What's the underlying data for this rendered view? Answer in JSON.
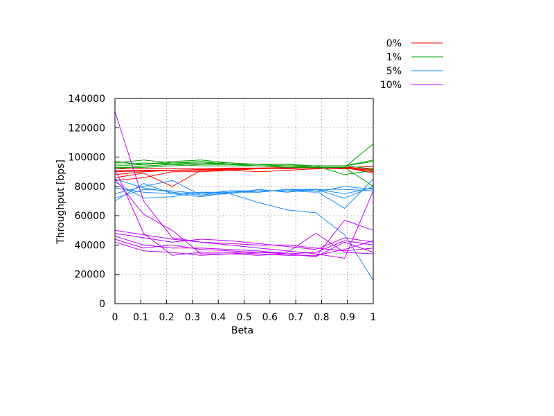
{
  "chart_data": {
    "type": "line",
    "title": "",
    "xlabel": "Beta",
    "ylabel": "Throughput [bps]",
    "xlim": [
      0,
      1
    ],
    "ylim": [
      0,
      140000
    ],
    "xticks": [
      "0",
      "0.1",
      "0.2",
      "0.3",
      "0.4",
      "0.5",
      "0.6",
      "0.7",
      "0.8",
      "0.9",
      "1"
    ],
    "yticks": [
      "0",
      "20000",
      "40000",
      "60000",
      "80000",
      "100000",
      "120000",
      "140000"
    ],
    "grid": true,
    "legend_position": "top-right, outside plot",
    "x": [
      0,
      0.111,
      0.222,
      0.333,
      0.444,
      0.556,
      0.667,
      0.778,
      0.889,
      1
    ],
    "series": [
      {
        "name": "0%",
        "color": "#ff0000",
        "lines": [
          [
            91000,
            91000,
            91000,
            91500,
            92000,
            92000,
            92500,
            92500,
            92500,
            91000
          ],
          [
            90000,
            90500,
            91000,
            91500,
            92000,
            92500,
            92500,
            93000,
            93000,
            91500
          ],
          [
            92000,
            92000,
            92000,
            92000,
            92500,
            92500,
            93000,
            93000,
            92500,
            90000
          ],
          [
            86000,
            89000,
            80000,
            91000,
            91000,
            90000,
            91000,
            92000,
            93000,
            89000
          ],
          [
            84000,
            86000,
            90000,
            90000,
            91000,
            92000,
            93000,
            92500,
            92000,
            92000
          ],
          [
            88000,
            90000,
            91000,
            91000,
            91500,
            92500,
            92000,
            93000,
            93000,
            93500
          ]
        ]
      },
      {
        "name": "1%",
        "color": "#00a000",
        "lines": [
          [
            96000,
            98000,
            96000,
            97000,
            95000,
            94000,
            94000,
            93000,
            93000,
            109000
          ],
          [
            94000,
            95000,
            97000,
            98000,
            96000,
            95000,
            95000,
            94000,
            94000,
            98000
          ],
          [
            93000,
            93000,
            94000,
            95000,
            95000,
            95000,
            94000,
            94000,
            88000,
            91000
          ],
          [
            95000,
            96000,
            95000,
            96000,
            95000,
            94000,
            94000,
            94000,
            94000,
            92000
          ],
          [
            92000,
            94000,
            95000,
            94000,
            94000,
            94000,
            93000,
            93000,
            93000,
            80000
          ],
          [
            97000,
            95000,
            96000,
            96000,
            96000,
            95000,
            95000,
            94000,
            94000,
            97000
          ]
        ]
      },
      {
        "name": "5%",
        "color": "#1a8cff",
        "lines": [
          [
            83000,
            72000,
            73000,
            76000,
            76000,
            77000,
            77000,
            76000,
            80000,
            78000
          ],
          [
            75000,
            80000,
            84000,
            74000,
            75000,
            69000,
            64000,
            62000,
            47000,
            16000
          ],
          [
            79000,
            76000,
            75000,
            73000,
            76000,
            76000,
            78000,
            77000,
            65000,
            85000
          ],
          [
            72000,
            78000,
            77000,
            75000,
            77000,
            76000,
            78000,
            78000,
            75000,
            79000
          ],
          [
            85000,
            79000,
            76000,
            74000,
            77000,
            77000,
            77000,
            78000,
            72000,
            80000
          ],
          [
            70000,
            82000,
            75000,
            76000,
            75000,
            78000,
            76000,
            78000,
            78000,
            77000
          ]
        ]
      },
      {
        "name": "10%",
        "color": "#c000ff",
        "lines": [
          [
            131000,
            70000,
            45000,
            42000,
            40000,
            38000,
            36000,
            34000,
            31000,
            77000
          ],
          [
            92000,
            48000,
            33000,
            35000,
            35000,
            34000,
            33000,
            33000,
            37000,
            43000
          ],
          [
            85000,
            61000,
            50000,
            34000,
            34000,
            33000,
            34000,
            32000,
            57000,
            50000
          ],
          [
            46000,
            40000,
            38000,
            38000,
            37000,
            36000,
            34000,
            32000,
            42000,
            35000
          ],
          [
            44000,
            38000,
            40000,
            37000,
            36000,
            35000,
            35000,
            48000,
            35000,
            34000
          ],
          [
            50000,
            47000,
            44000,
            42000,
            41000,
            40000,
            40000,
            38000,
            36000,
            38000
          ],
          [
            48000,
            45000,
            42000,
            44000,
            43000,
            41000,
            39000,
            37000,
            45000,
            42000
          ],
          [
            42000,
            36000,
            35000,
            33000,
            34000,
            35000,
            34000,
            35000,
            43000,
            40000
          ]
        ]
      }
    ]
  }
}
